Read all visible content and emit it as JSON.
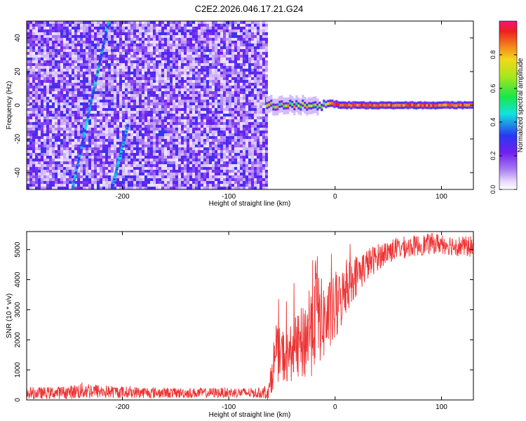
{
  "title": "C2E2.2026.046.17.21.G24",
  "colors": {
    "snr_line": "#ee3333",
    "frame": "#000000",
    "background": "#ffffff"
  },
  "chart_data": [
    {
      "type": "heatmap",
      "title": "C2E2.2026.046.17.21.G24",
      "xlabel": "Height of straight line (km)",
      "ylabel": "Frequency (Hz)",
      "xlim": [
        -290,
        130
      ],
      "ylim": [
        -50,
        50
      ],
      "x_ticks": [
        -200,
        -100,
        0,
        100
      ],
      "y_ticks": [
        -40,
        -20,
        0,
        20,
        40
      ],
      "grid": false,
      "noise_region_x": [
        -290,
        -65
      ],
      "signal_line": {
        "frequency_hz": 0,
        "x_start": -65,
        "x_end": 130
      },
      "streaks": [
        {
          "x1": -247,
          "y1": -50,
          "x2": -213,
          "y2": 50
        },
        {
          "x1": -210,
          "y1": -50,
          "x2": -195,
          "y2": -12
        }
      ],
      "colorbar": {
        "label": "Normalized spectral amplitude",
        "range": [
          0.0,
          1.0
        ],
        "ticks": [
          0.0,
          0.2,
          0.4,
          0.6,
          0.8
        ]
      }
    },
    {
      "type": "line",
      "xlabel": "Height of straight line (km)",
      "ylabel": "SNR (10 * v/v)",
      "xlim": [
        -290,
        130
      ],
      "ylim": [
        0,
        5600
      ],
      "x_ticks": [
        -200,
        -100,
        0,
        100
      ],
      "y_ticks": [
        0,
        1000,
        2000,
        3000,
        4000,
        5000
      ],
      "grid": false,
      "series": [
        {
          "name": "SNR",
          "x": [
            -290,
            -270,
            -250,
            -235,
            -220,
            -200,
            -180,
            -160,
            -140,
            -120,
            -100,
            -85,
            -70,
            -62,
            -58,
            -55,
            -50,
            -45,
            -40,
            -35,
            -30,
            -25,
            -20,
            -17,
            -15,
            -10,
            -5,
            0,
            5,
            10,
            15,
            20,
            30,
            40,
            50,
            60,
            70,
            80,
            90,
            100,
            110,
            120,
            130
          ],
          "mean": [
            220,
            230,
            260,
            320,
            280,
            260,
            250,
            240,
            230,
            235,
            245,
            240,
            230,
            300,
            1200,
            1500,
            1500,
            1400,
            1650,
            1750,
            1900,
            2300,
            2900,
            3200,
            2700,
            2600,
            2800,
            2950,
            3300,
            3700,
            3950,
            4150,
            4500,
            4750,
            4950,
            5050,
            5100,
            5150,
            5200,
            5200,
            5150,
            5100,
            5100
          ],
          "spread": [
            200,
            200,
            220,
            300,
            230,
            200,
            190,
            180,
            170,
            170,
            170,
            170,
            170,
            300,
            800,
            900,
            900,
            900,
            1000,
            1100,
            1300,
            1700,
            2000,
            1800,
            1500,
            1300,
            1200,
            1200,
            1000,
            900,
            800,
            700,
            550,
            450,
            400,
            380,
            360,
            350,
            350,
            350,
            350,
            350,
            350
          ]
        }
      ]
    }
  ]
}
